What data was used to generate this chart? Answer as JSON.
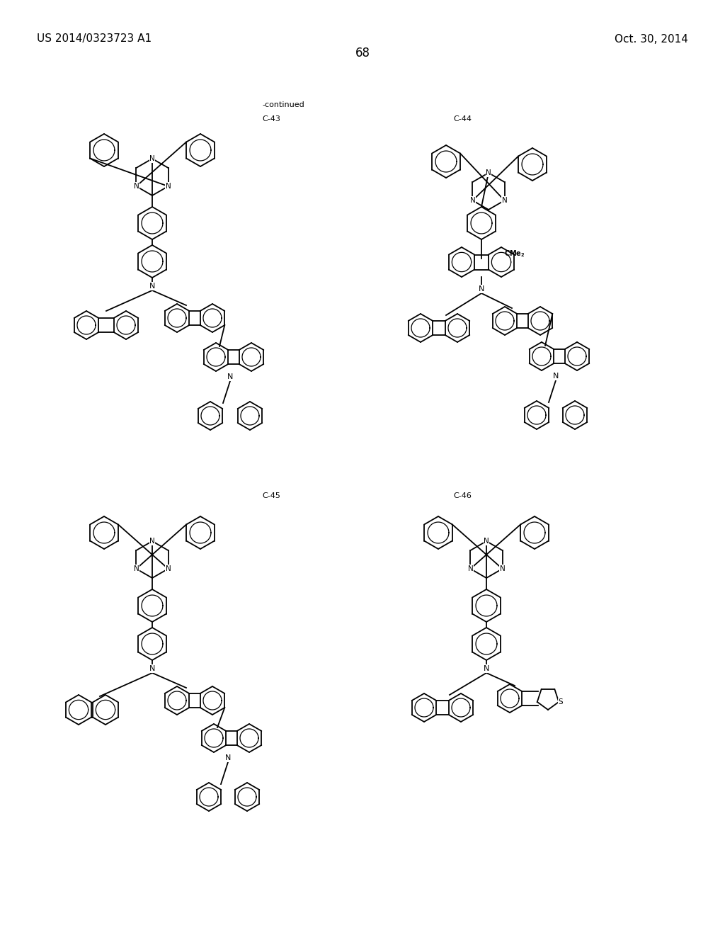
{
  "header_left": "US 2014/0323723 A1",
  "header_right": "Oct. 30, 2014",
  "page_number": "68",
  "continued_label": "-continued",
  "labels": [
    "C-43",
    "C-44",
    "C-45",
    "C-46"
  ],
  "bg_color": "#ffffff",
  "text_color": "#000000",
  "font_size_header": 11,
  "font_size_label": 9,
  "font_size_page": 12
}
